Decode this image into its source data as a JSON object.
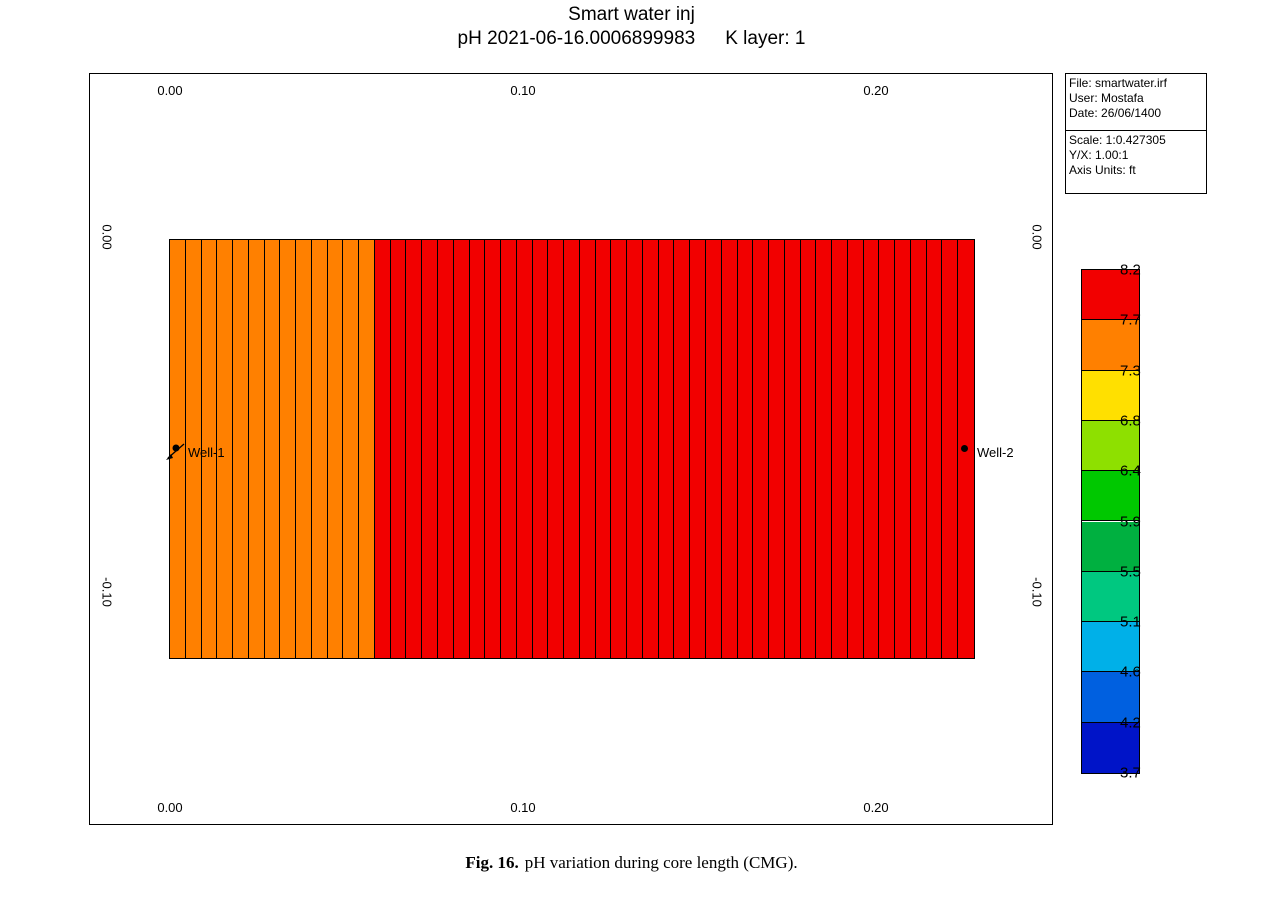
{
  "chart_data": {
    "type": "heatmap",
    "title": "Smart water inj",
    "subtitle_property": "pH 2021-06-16.0006899983",
    "subtitle_layer": "K layer: 1",
    "x_ticks_top": [
      "0.00",
      "0.10",
      "0.20"
    ],
    "x_ticks_bottom": [
      "0.00",
      "0.10",
      "0.20"
    ],
    "y_ticks_left": [
      "0.00",
      "-0.10"
    ],
    "y_ticks_right": [
      "0.00",
      "-0.10"
    ],
    "columns": [
      7.5,
      7.5,
      7.5,
      7.5,
      7.5,
      7.5,
      7.5,
      7.5,
      7.5,
      7.5,
      7.5,
      7.5,
      7.5,
      7.95,
      7.95,
      7.95,
      7.95,
      7.95,
      7.95,
      7.95,
      7.95,
      7.95,
      7.95,
      7.95,
      7.95,
      7.95,
      7.95,
      7.95,
      7.95,
      7.95,
      7.95,
      7.95,
      7.95,
      7.95,
      7.95,
      7.95,
      7.95,
      7.95,
      7.95,
      7.95,
      7.95,
      7.95,
      7.95,
      7.95,
      7.95,
      7.95,
      7.95,
      7.95,
      7.95,
      7.95,
      7.95
    ],
    "wells": [
      {
        "name": "Well-1",
        "type": "injector"
      },
      {
        "name": "Well-2",
        "type": "producer"
      }
    ],
    "legend": {
      "levels": [
        "8.2",
        "7.7",
        "7.3",
        "6.8",
        "6.4",
        "5.9",
        "5.5",
        "5.1",
        "4.6",
        "4.2",
        "3.7"
      ],
      "colors": [
        "#f20000",
        "#ff8000",
        "#ffe000",
        "#8ee000",
        "#00c800",
        "#00b040",
        "#00c880",
        "#00b0e8",
        "#0060e0",
        "#0014c8"
      ]
    }
  },
  "info_box": {
    "file": "File: smartwater.irf",
    "user": "User:  Mostafa",
    "date": "Date: 26/06/1400",
    "scale": "Scale: 1:0.427305",
    "yx": "Y/X: 1.00:1",
    "axis_units": "Axis Units: ft"
  },
  "caption": {
    "label": "Fig. 16.",
    "text": "pH variation during core length (CMG)."
  }
}
